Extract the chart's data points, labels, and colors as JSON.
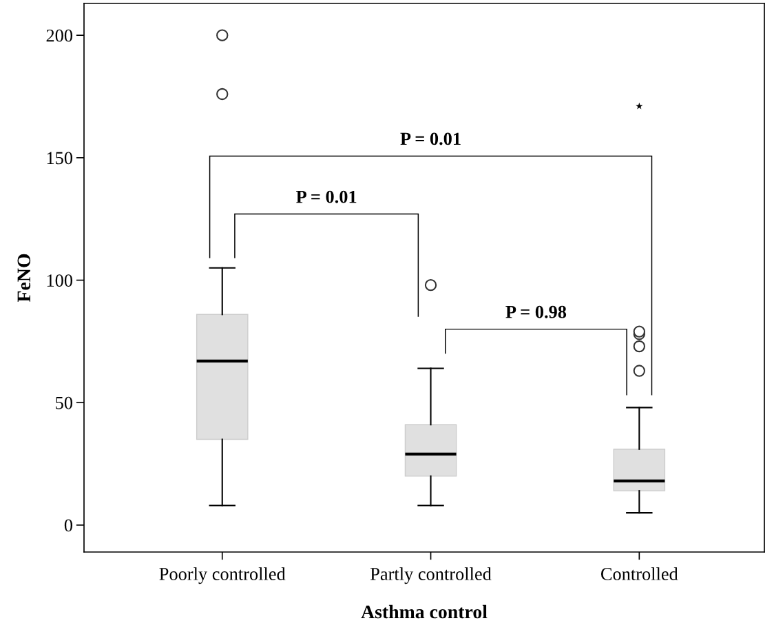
{
  "chart_data": {
    "type": "box",
    "xlabel": "Asthma control",
    "ylabel": "FeNO",
    "categories": [
      "Poorly controlled",
      "Partly controlled",
      "Controlled"
    ],
    "boxes": [
      {
        "low": 8,
        "q1": 35,
        "median": 67,
        "q3": 86,
        "high": 105,
        "outliers": [
          176,
          200
        ]
      },
      {
        "low": 8,
        "q1": 20,
        "median": 29,
        "q3": 41,
        "high": 64,
        "outliers": [
          98
        ]
      },
      {
        "low": 5,
        "q1": 14,
        "median": 18,
        "q3": 31,
        "high": 48,
        "outliers": [
          63,
          73,
          78,
          79
        ]
      }
    ],
    "series": [
      {
        "type": "scatter",
        "x": [
          "Controlled"
        ],
        "values": [
          171
        ],
        "marker": "star",
        "color": "#000000"
      }
    ],
    "color": "#e0e0e0",
    "ylim": [
      -11,
      213
    ],
    "yticks": [
      0,
      50,
      100,
      150,
      200
    ],
    "grid": false,
    "annotations": [
      "P = 0.01",
      "P = 0.01",
      "P = 0.98"
    ]
  }
}
